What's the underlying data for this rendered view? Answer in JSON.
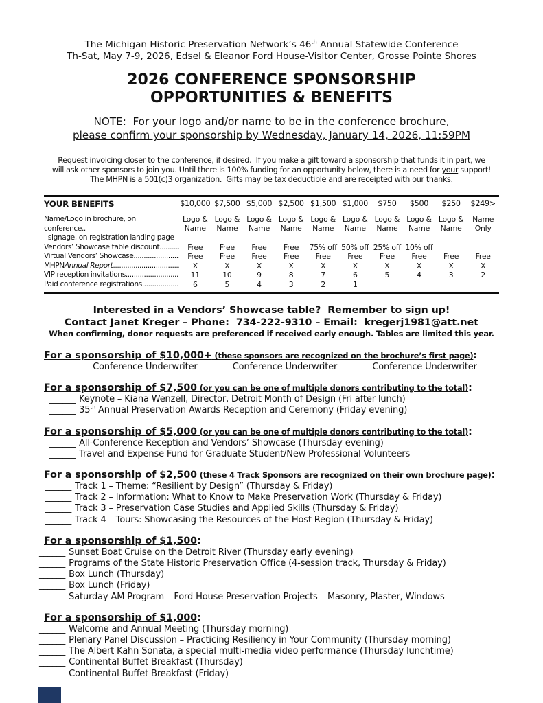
{
  "ui": {
    "blank": "______",
    "colon": ":"
  },
  "page": {
    "header_line1_pre": "The Michigan Historic Preservation Network’s 46",
    "header_line1_sup": "th",
    "header_line1_post": " Annual Statewide Conference",
    "header_line2": "Th-Sat, May 7-9, 2026, Edsel & Eleanor Ford House-Visitor Center, Grosse Pointe Shores",
    "title_line1": "2026 CONFERENCE SPONSORSHIP",
    "title_line2": "OPPORTUNITIES & BENEFITS",
    "note_line1": "NOTE:  For your logo and/or name to be in the conference brochure,",
    "note_line2": "please confirm your sponsorship by Wednesday, January 14, 2026, 11:59PM",
    "intro_line1": "Request invoicing closer to the conference, if desired.  If you make a gift toward a sponsorship that funds it in part, we",
    "intro_line2_pre": "will ask other sponsors to join you. Until there is 100% funding for an opportunity below, there is a need for ",
    "intro_line2_underlined": "your",
    "intro_line2_post": " support!",
    "intro_line3": "The MHPN is a 501(c)3 organization.  Gifts may be tax deductible and are receipted with our thanks."
  },
  "benefits": {
    "header": [
      "YOUR BENEFITS",
      "$10,000",
      "$7,500",
      "$5,000",
      "$2,500",
      "$1,500",
      "$1,000",
      "$750",
      "$500",
      "$250",
      "$249>"
    ],
    "rows": [
      {
        "label": "Name/Logo in brochure, on conference..\n  signage, on registration landing page",
        "dots": "",
        "values": [
          "Logo & Name",
          "Logo & Name",
          "Logo & Name",
          "Logo & Name",
          "Logo & Name",
          "Logo & Name",
          "Logo & Name",
          "Logo & Name",
          "Logo & Name",
          "Name Only"
        ]
      },
      {
        "label": "Vendors’ Showcase table discount",
        "dots": "..........................................",
        "values": [
          "Free",
          "Free",
          "Free",
          "Free",
          "75% off",
          "50% off",
          "25% off",
          "10% off",
          "",
          ""
        ]
      },
      {
        "label": "Virtual Vendors’ Showcase ",
        "dots": "..........................................",
        "values": [
          "Free",
          "Free",
          "Free",
          "Free",
          "Free",
          "Free",
          "Free",
          "Free",
          "Free",
          "Free"
        ]
      },
      {
        "label": "MHPN ",
        "italic": "Annual Report",
        "dots": "..........................................",
        "values": [
          "X",
          "X",
          "X",
          "X",
          "X",
          "X",
          "X",
          "X",
          "X",
          "X"
        ]
      },
      {
        "label": "VIP reception invitations",
        "dots": "..........................................",
        "values": [
          "11",
          "10",
          "9",
          "8",
          "7",
          "6",
          "5",
          "4",
          "3",
          "2"
        ]
      },
      {
        "label": "Paid conference registrations",
        "dots": "........................ ..",
        "values": [
          "6",
          "5",
          "4",
          "3",
          "2",
          "1",
          "",
          "",
          "",
          ""
        ]
      }
    ]
  },
  "showcase": {
    "line1": "Interested in a Vendors’ Showcase table?  Remember to sign up!",
    "line2": "Contact Janet Kreger – Phone:  734-222-9310 – Email:  kregerj1981@att.net",
    "line3": "When confirming, donor requests are preferenced if received early enough. Tables are limited this year."
  },
  "sections": [
    {
      "title": "For a sponsorship of $10,000+",
      "note": " (these sponsors are recognized on the brochure’s first page)",
      "items": [
        {
          "text": "Conference Underwriter"
        },
        {
          "text": "Conference Underwriter"
        },
        {
          "text": "Conference Underwriter"
        }
      ]
    },
    {
      "title": "For a sponsorship of $7,500",
      "note": " (or you can be one of multiple donors contributing to the total)",
      "items": [
        {
          "text": "Keynote – Kiana Wenzell, Director, Detroit Month of Design (Fri after lunch)"
        },
        {
          "pre": "35",
          "sup": "th",
          "text": " Annual Preservation Awards Reception and Ceremony (Friday evening)"
        }
      ]
    },
    {
      "title": "For a sponsorship of $5,000",
      "note": " (or you can be one of multiple donors contributing to the total)",
      "items": [
        {
          "text": "All-Conference Reception and Vendors’ Showcase (Thursday evening)"
        },
        {
          "text": "Travel and Expense Fund for Graduate Student/New Professional Volunteers"
        }
      ]
    },
    {
      "title": "For a sponsorship of $2,500",
      "note": " (these 4 Track Sponsors are recognized on their own brochure page)",
      "items": [
        {
          "text": "Track 1 – Theme: “Resilient by Design” (Thursday & Friday)"
        },
        {
          "text": "Track 2 – Information: What to Know to Make Preservation Work (Thursday & Friday)"
        },
        {
          "text": "Track 3 – Preservation Case Studies and Applied Skills (Thursday & Friday)"
        },
        {
          "text": "Track 4 – Tours: Showcasing the Resources of the Host Region (Thursday & Friday)"
        }
      ]
    },
    {
      "title": "For a sponsorship of $1,500",
      "note": "",
      "items": [
        {
          "text": "Sunset Boat Cruise on the Detroit River (Thursday early evening)"
        },
        {
          "text": "Programs of the State Historic Preservation Office (4-session track, Thursday & Friday)"
        },
        {
          "text": "Box Lunch (Thursday)"
        },
        {
          "text": "Box Lunch (Friday)"
        },
        {
          "text": "Saturday AM Program – Ford House Preservation Projects – Masonry, Plaster, Windows"
        }
      ]
    },
    {
      "title": "For a sponsorship of $1,000",
      "note": "",
      "items": [
        {
          "text": "Welcome and Annual Meeting (Thursday morning)"
        },
        {
          "text": "Plenary Panel Discussion – Practicing Resiliency in Your Community (Thursday morning)"
        },
        {
          "text": "The Albert Kahn Sonata, a special multi-media video performance (Thursday lunchtime)"
        },
        {
          "text": "Continental Buffet Breakfast (Thursday)"
        },
        {
          "text": "Continental Buffet Breakfast (Friday)"
        }
      ]
    }
  ]
}
